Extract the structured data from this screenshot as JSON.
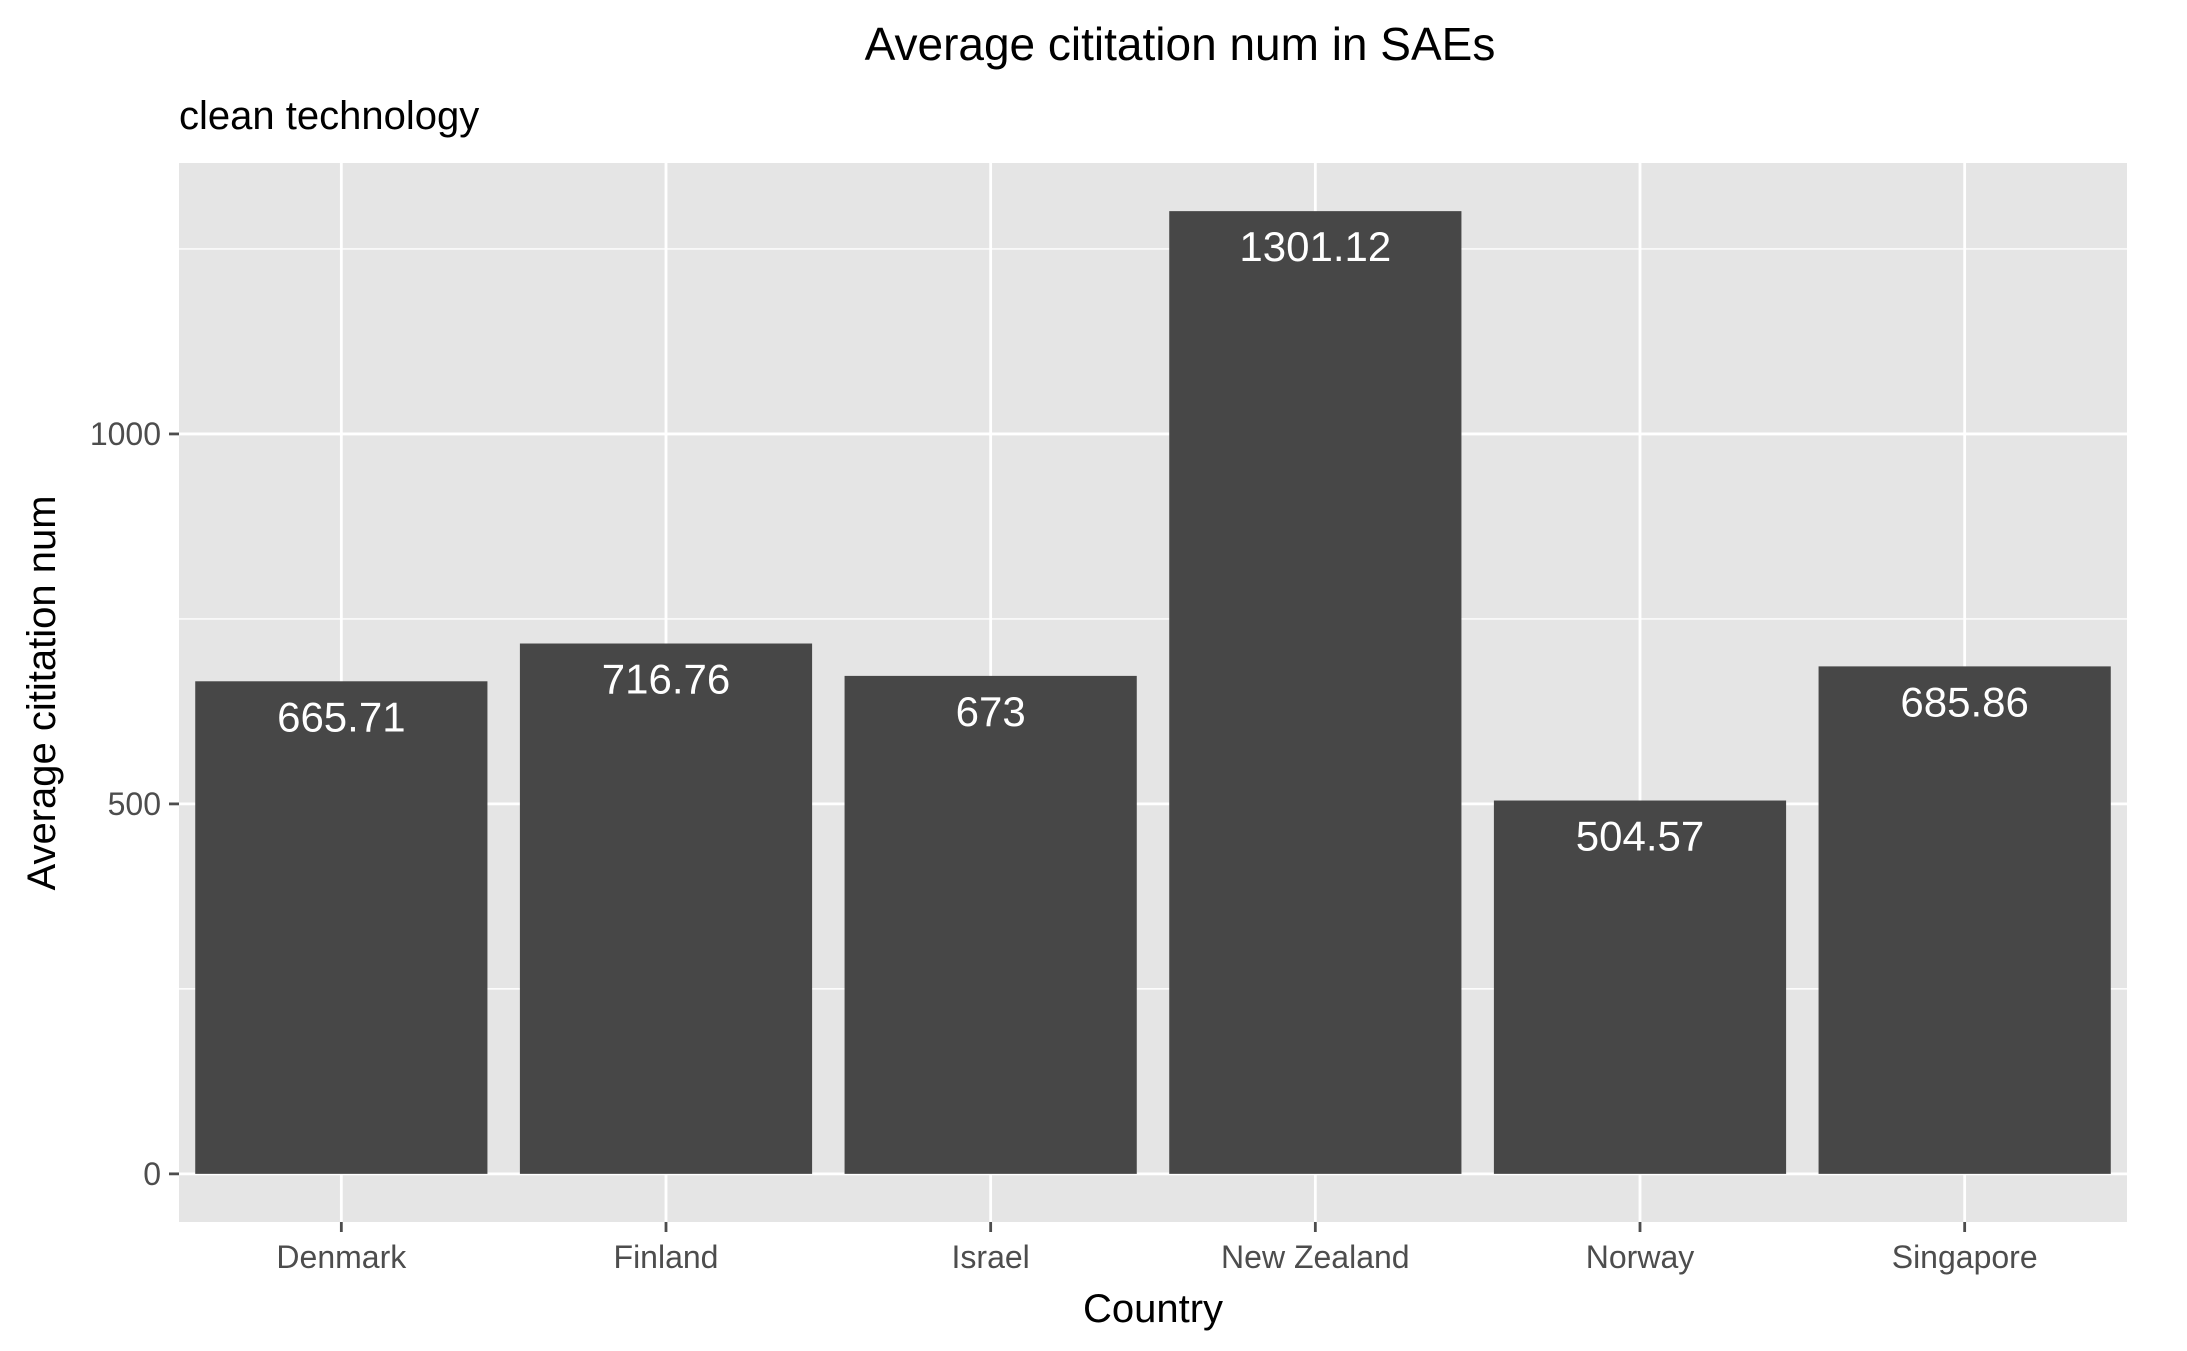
{
  "colors": {
    "panel": "#e5e5e5",
    "grid": "#ffffff",
    "bar": "#474747",
    "tick": "#4d4d4d",
    "text": "#000000",
    "data_label": "#ffffff"
  },
  "chart_data": {
    "type": "bar",
    "title": "Average cititation num in SAEs",
    "subtitle": "clean technology",
    "xlabel": "Country",
    "ylabel": "Average cititation num",
    "categories": [
      "Denmark",
      "Finland",
      "Israel",
      "New Zealand",
      "Norway",
      "Singapore"
    ],
    "values": [
      665.71,
      716.76,
      673,
      1301.12,
      504.57,
      685.86
    ],
    "data_labels": [
      "665.71",
      "716.76",
      "673",
      "1301.12",
      "504.57",
      "685.86"
    ],
    "ylim": [
      -65.06,
      1366.18
    ],
    "yticks": [
      0,
      500,
      1000
    ],
    "ytick_labels": [
      "0",
      "500",
      "1000"
    ],
    "minor_grid": [
      250,
      750,
      1250
    ],
    "grid": true,
    "legend": "none"
  }
}
